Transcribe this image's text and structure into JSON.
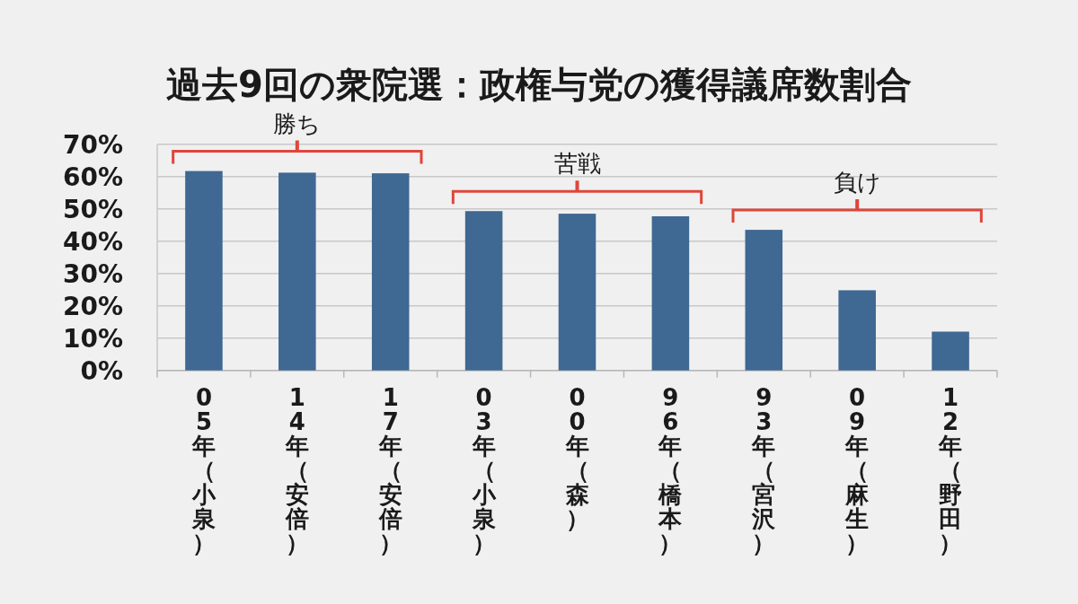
{
  "chart_data": {
    "type": "bar",
    "title": "過去9回の衆院選：政権与党の獲得議席数割合",
    "categories": [
      "05年（小泉）",
      "14年（安倍）",
      "17年（安倍）",
      "03年（小泉）",
      "00年（森）",
      "96年（橋本）",
      "93年（宮沢）",
      "09年（麻生）",
      "12年（野田）"
    ],
    "values": [
      61.7,
      61.2,
      61.0,
      49.3,
      48.5,
      47.7,
      43.5,
      24.8,
      12.0
    ],
    "color": "#3f6892",
    "ylim": [
      0,
      70
    ],
    "yticks": [
      {
        "value": 0,
        "label": "0%"
      },
      {
        "value": 10,
        "label": "10%"
      },
      {
        "value": 20,
        "label": "20%"
      },
      {
        "value": 30,
        "label": "30%"
      },
      {
        "value": 40,
        "label": "40%"
      },
      {
        "value": 50,
        "label": "50%"
      },
      {
        "value": 60,
        "label": "60%"
      },
      {
        "value": 70,
        "label": "70%"
      }
    ],
    "grid": "y",
    "annotations": [
      "勝ち",
      "苦戦",
      "負け"
    ]
  }
}
